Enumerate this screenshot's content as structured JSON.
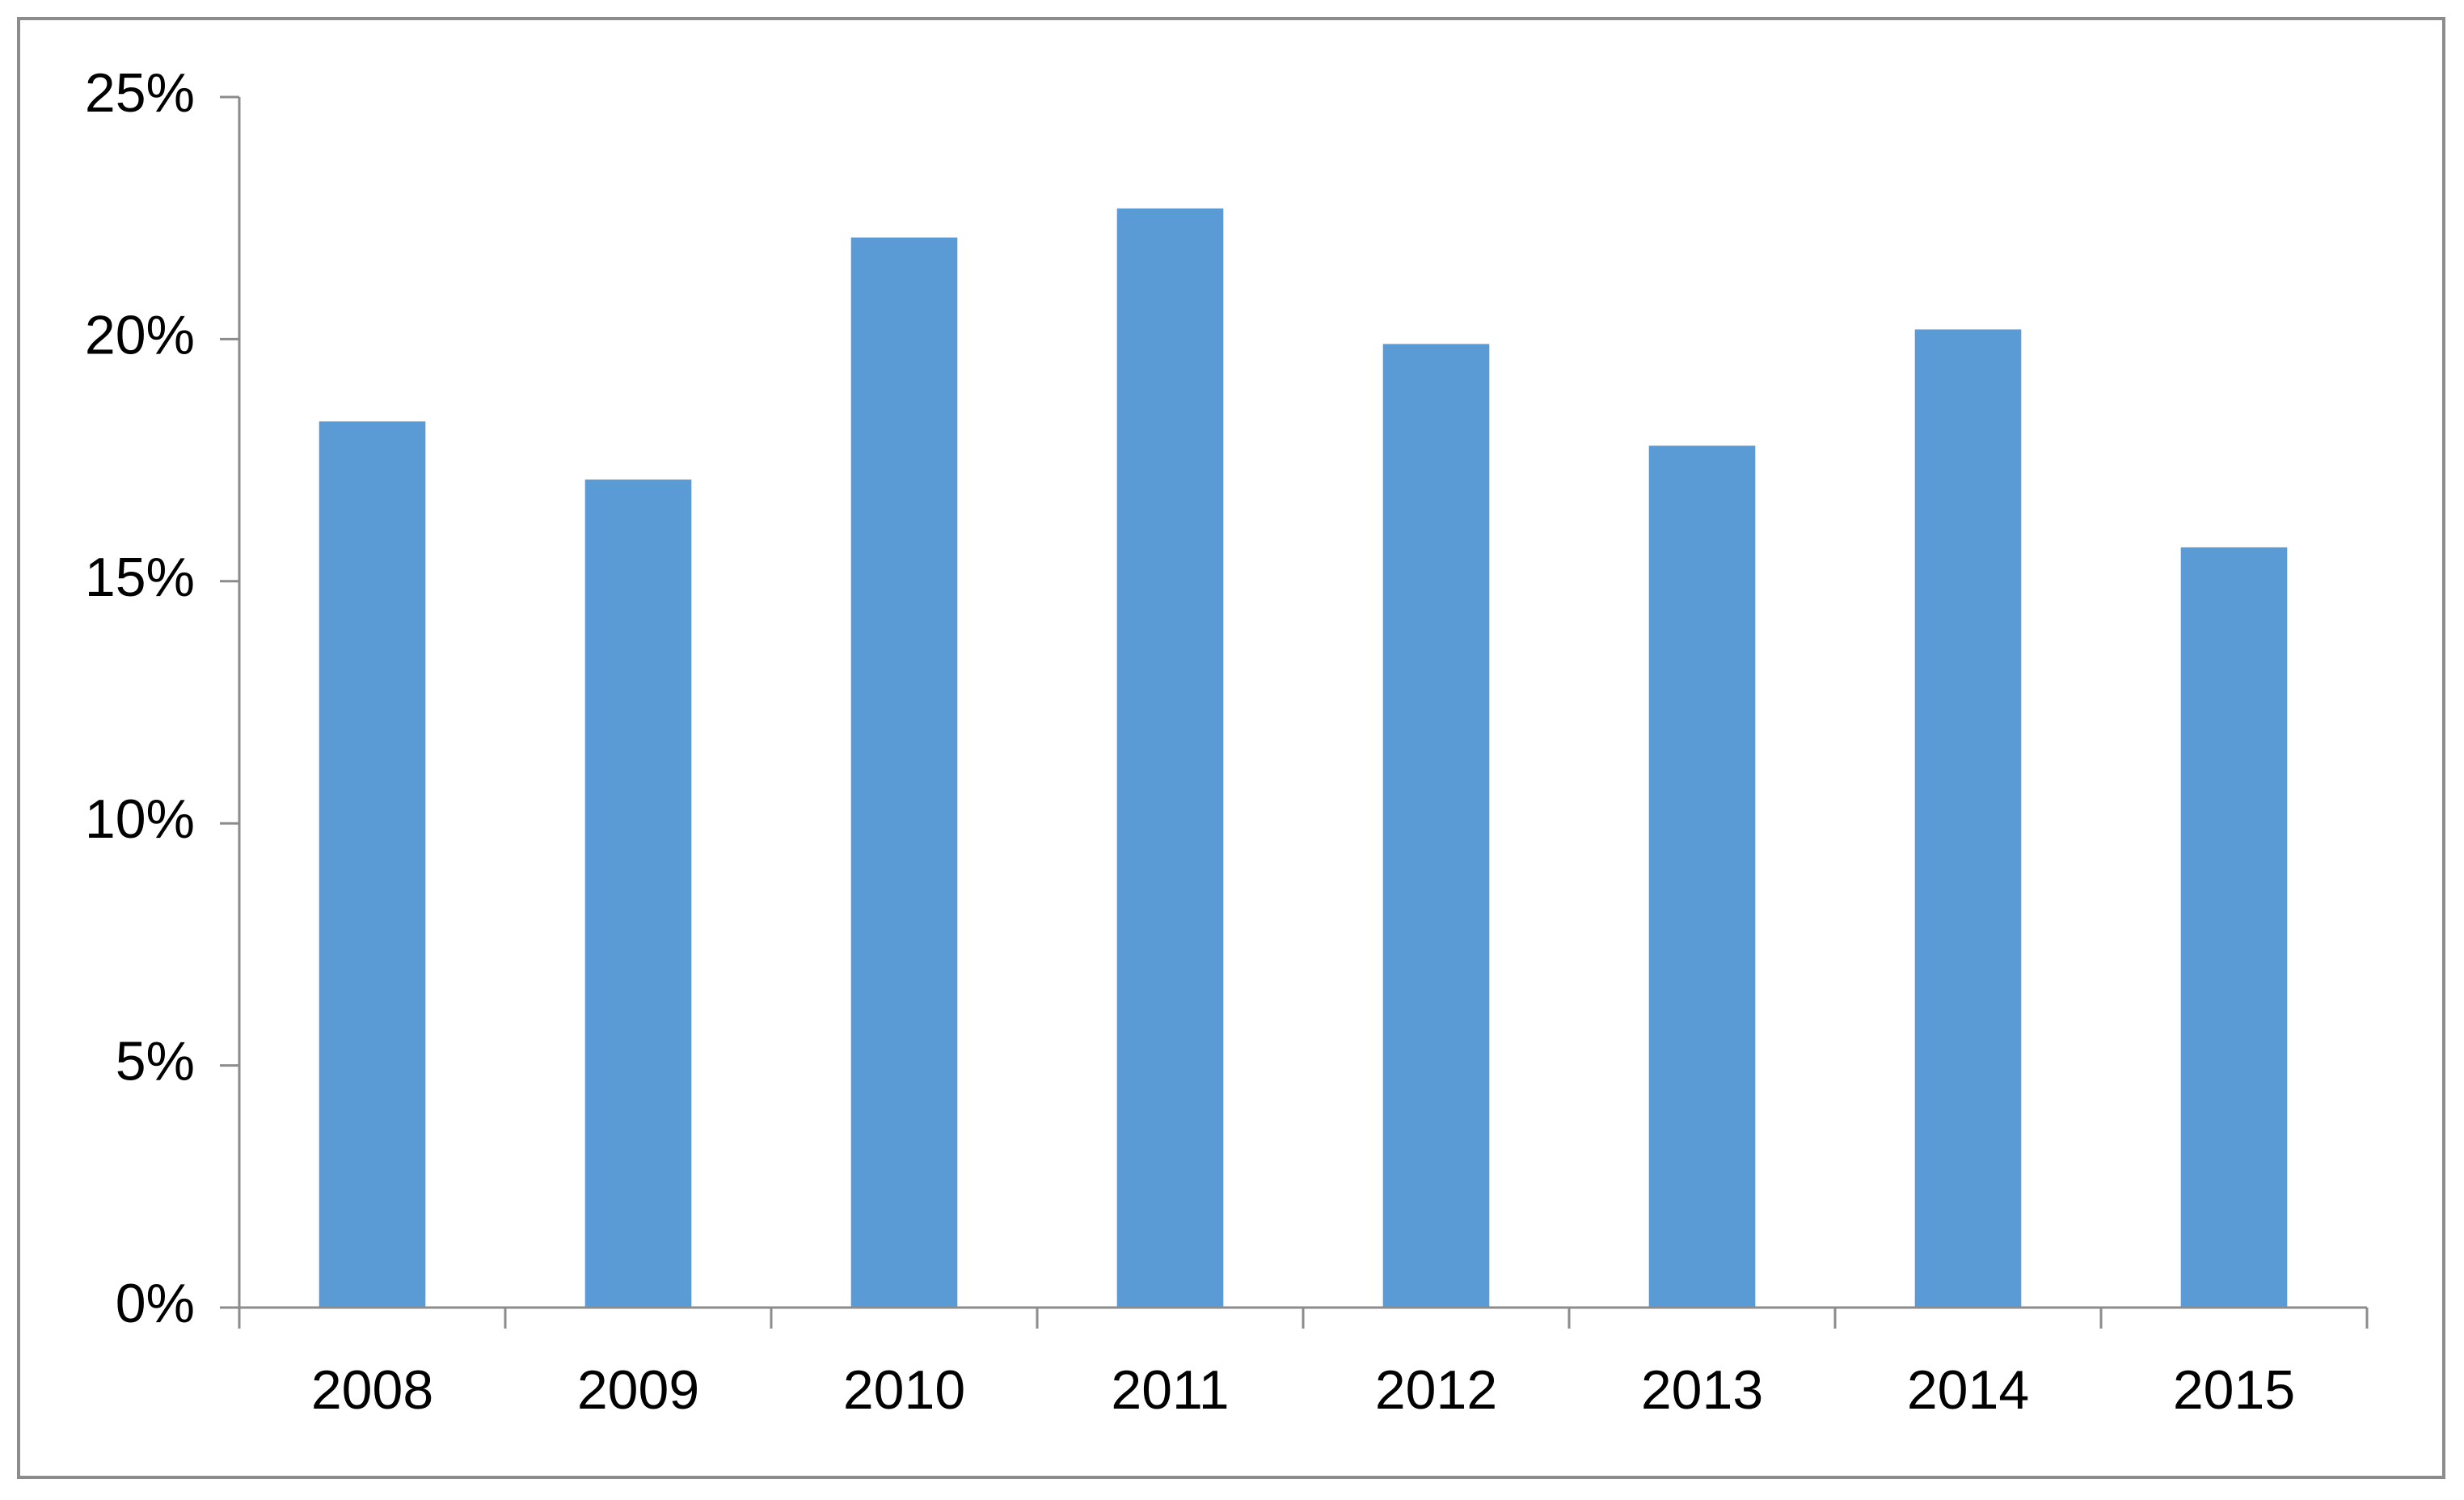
{
  "chart_data": {
    "type": "bar",
    "categories": [
      "2008",
      "2009",
      "2010",
      "2011",
      "2012",
      "2013",
      "2014",
      "2015"
    ],
    "values": [
      18.3,
      17.1,
      22.1,
      22.7,
      19.9,
      17.8,
      20.2,
      15.7
    ],
    "color": "#5b9bd5",
    "ylim": [
      0,
      25
    ],
    "yticks": [
      {
        "value": 0,
        "label": "0%"
      },
      {
        "value": 5,
        "label": "5%"
      },
      {
        "value": 10,
        "label": "10%"
      },
      {
        "value": 15,
        "label": "15%"
      },
      {
        "value": 20,
        "label": "20%"
      },
      {
        "value": 25,
        "label": "25%"
      }
    ],
    "grid": false
  }
}
